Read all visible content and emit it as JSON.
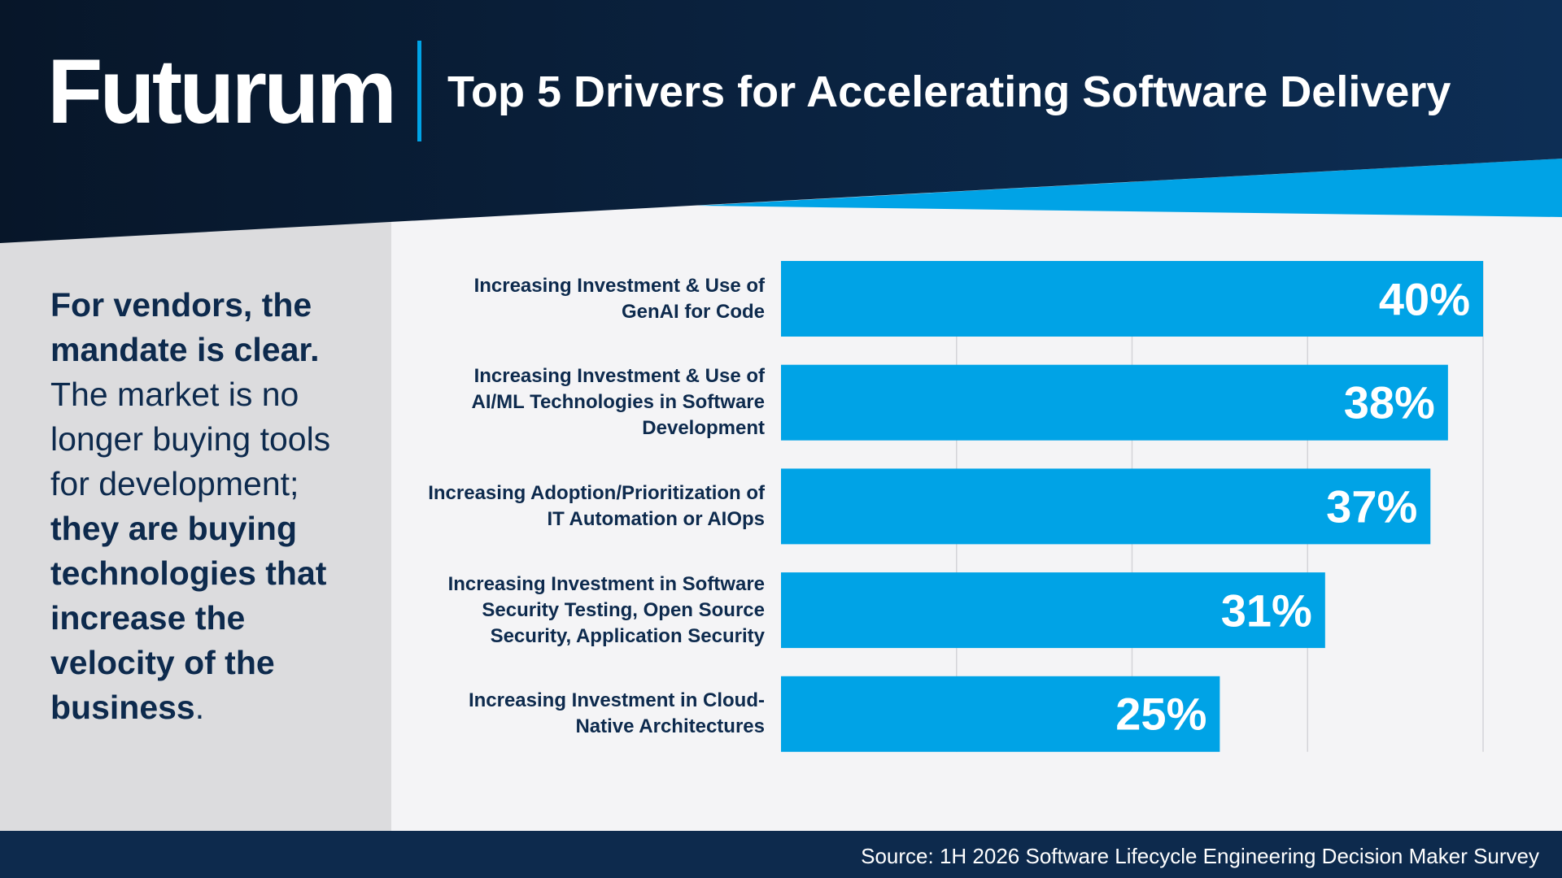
{
  "header": {
    "logo": "Futurum"
  },
  "sidebar": {
    "segments": [
      {
        "text": "For vendors, the mandate is clear.",
        "bold": true
      },
      {
        "text": "The market is no longer buying tools for development;",
        "bold": false
      },
      {
        "text": "they are buying technologies that increase the velocity of the business",
        "bold": true
      },
      {
        "text": ".",
        "bold": false
      }
    ]
  },
  "chart_data": {
    "type": "hbar",
    "title": "Top 5 Drivers for Accelerating Software Delivery",
    "categories": [
      "Increasing Investment & Use of GenAI for Code",
      "Increasing Investment & Use of AI/ML Technologies in Software Development",
      "Increasing Adoption/Prioritization of IT Automation or AIOps",
      "Increasing Investment in Software Security Testing, Open Source Security, Application Security",
      "Increasing Investment in Cloud-Native Architectures"
    ],
    "values": [
      40,
      38,
      37,
      31,
      25
    ],
    "value_labels": [
      "40%",
      "38%",
      "37%",
      "31%",
      "25%"
    ],
    "color": "#00a3e6",
    "xlim": [
      0,
      40
    ],
    "xticks": [
      10,
      20,
      30,
      40
    ],
    "grid": true
  },
  "footer": {
    "source": "Source: 1H 2026 Software Lifecycle Engineering Decision Maker Survey"
  }
}
